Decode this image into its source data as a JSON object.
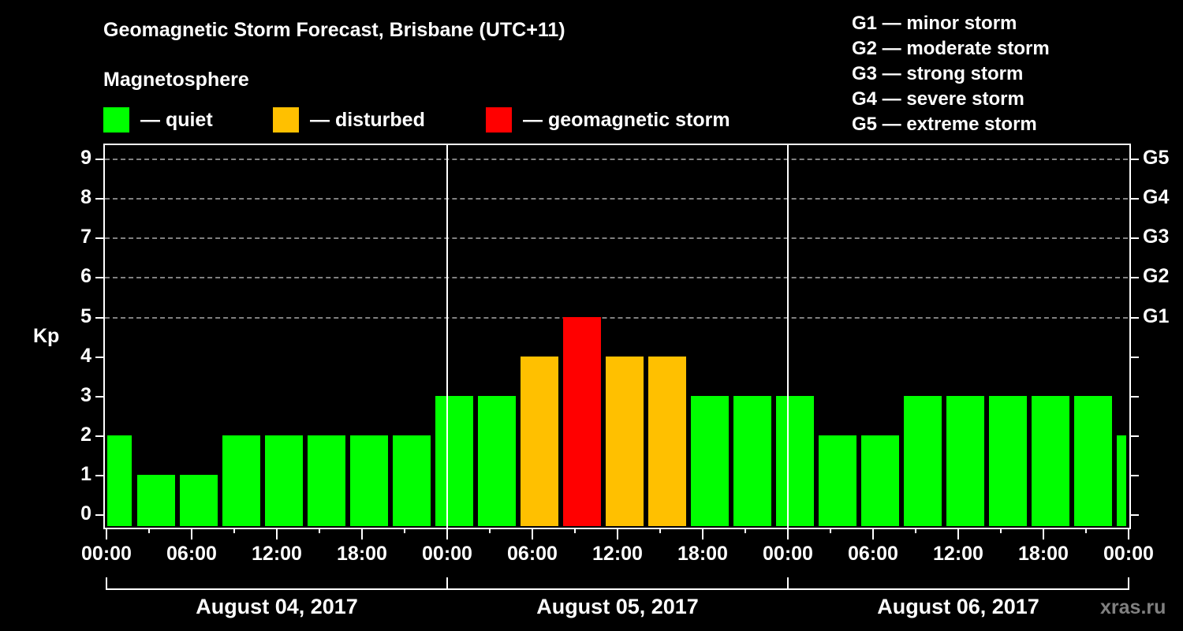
{
  "header": {
    "title": "Geomagnetic Storm Forecast, Brisbane (UTC+11)",
    "subtitle": "Magnetosphere"
  },
  "legend": [
    {
      "label": "— quiet",
      "color": "#00ff00"
    },
    {
      "label": "— disturbed",
      "color": "#ffc000"
    },
    {
      "label": "— geomagnetic storm",
      "color": "#ff0000"
    }
  ],
  "g_scale_legend": [
    "G1 — minor storm",
    "G2 — moderate storm",
    "G3 — strong storm",
    "G4 — severe storm",
    "G5 — extreme storm"
  ],
  "axes": {
    "ylabel": "Kp",
    "y_ticks": [
      "0",
      "1",
      "2",
      "3",
      "4",
      "5",
      "6",
      "7",
      "8",
      "9"
    ],
    "right_ticks": {
      "5": "G1",
      "6": "G2",
      "7": "G3",
      "8": "G4",
      "9": "G5"
    },
    "x_ticks": [
      "00:00",
      "06:00",
      "12:00",
      "18:00",
      "00:00",
      "06:00",
      "12:00",
      "18:00",
      "00:00",
      "06:00",
      "12:00",
      "18:00",
      "00:00"
    ],
    "days": [
      "August 04, 2017",
      "August 05, 2017",
      "August 06, 2017"
    ]
  },
  "watermark": "xras.ru",
  "colors": {
    "quiet": "#00ff00",
    "disturbed": "#ffc000",
    "storm": "#ff0000",
    "grid": "#808080"
  },
  "chart_data": {
    "type": "bar",
    "title": "Geomagnetic Storm Forecast, Brisbane (UTC+11)",
    "xlabel": "",
    "ylabel": "Kp",
    "ylim": [
      0,
      9
    ],
    "grid": "dashed horizontal lines at Kp 5-9",
    "legend_position": "top",
    "categories": [
      "Aug 04 00:00 (partial)",
      "Aug 04 02:00",
      "Aug 04 05:00",
      "Aug 04 08:00",
      "Aug 04 11:00",
      "Aug 04 14:00",
      "Aug 04 17:00",
      "Aug 04 20:00",
      "Aug 04 23:00",
      "Aug 05 02:00",
      "Aug 05 05:00",
      "Aug 05 08:00",
      "Aug 05 11:00",
      "Aug 05 14:00",
      "Aug 05 17:00",
      "Aug 05 20:00",
      "Aug 05 23:00",
      "Aug 06 02:00",
      "Aug 06 05:00",
      "Aug 06 08:00",
      "Aug 06 11:00",
      "Aug 06 14:00",
      "Aug 06 17:00",
      "Aug 06 20:00",
      "Aug 06 23:00 (partial)"
    ],
    "values": [
      2,
      1,
      1,
      2,
      2,
      2,
      2,
      2,
      3,
      3,
      4,
      5,
      4,
      4,
      3,
      3,
      3,
      2,
      2,
      3,
      3,
      3,
      3,
      3,
      2
    ],
    "status": [
      "quiet",
      "quiet",
      "quiet",
      "quiet",
      "quiet",
      "quiet",
      "quiet",
      "quiet",
      "quiet",
      "quiet",
      "disturbed",
      "storm",
      "disturbed",
      "disturbed",
      "quiet",
      "quiet",
      "quiet",
      "quiet",
      "quiet",
      "quiet",
      "quiet",
      "quiet",
      "quiet",
      "quiet",
      "quiet"
    ]
  }
}
